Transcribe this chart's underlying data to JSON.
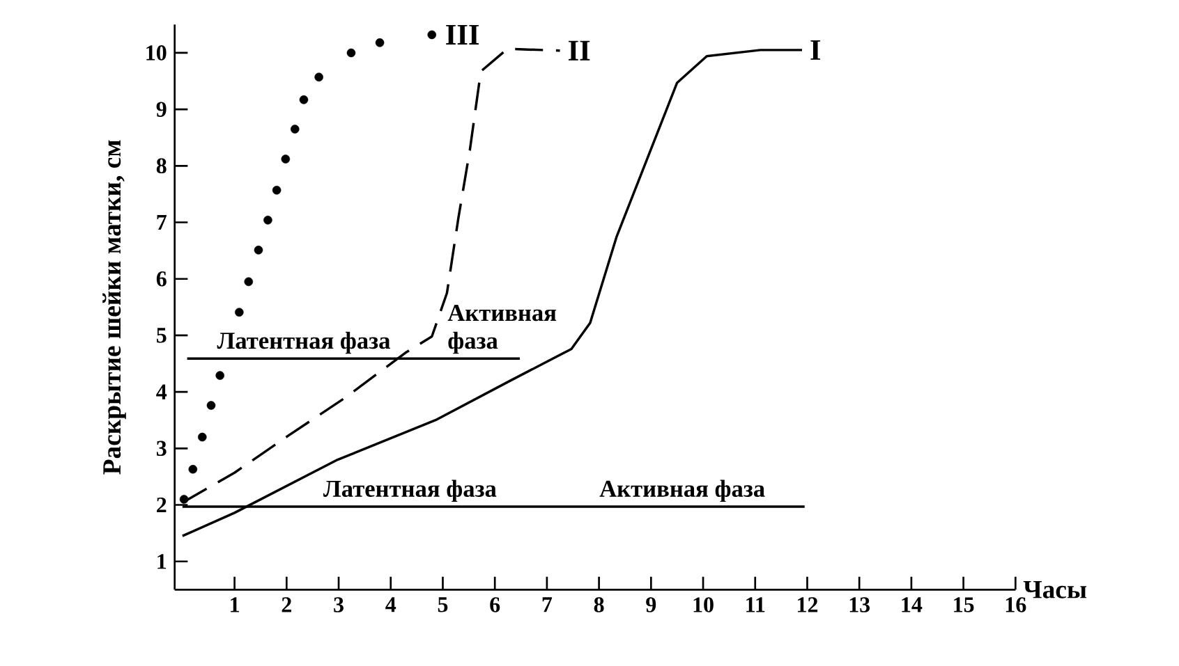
{
  "chart_data": {
    "type": "line",
    "xlabel": "Часы",
    "ylabel": "Раскрытие шейки матки, см",
    "xlim": [
      -0.15,
      16
    ],
    "ylim": [
      0.5,
      10.5
    ],
    "xticks": [
      1,
      2,
      3,
      4,
      5,
      6,
      7,
      8,
      9,
      10,
      11,
      12,
      13,
      14,
      15,
      16
    ],
    "yticks": [
      1,
      2,
      3,
      4,
      5,
      6,
      7,
      8,
      9,
      10
    ],
    "series": [
      {
        "name": "I",
        "type": "line",
        "line_style": "solid",
        "color": "#000000",
        "x": [
          0,
          1,
          2.98,
          4.86,
          6.3,
          7.47,
          7.83,
          8.34,
          9.5,
          10.07,
          11.1,
          11.9
        ],
        "values": [
          1.45,
          1.86,
          2.8,
          3.5,
          4.2,
          4.76,
          5.22,
          6.75,
          9.47,
          9.94,
          10.05,
          10.05
        ]
      },
      {
        "name": "II",
        "type": "line",
        "line_style": "dashed",
        "color": "#000000",
        "x": [
          0,
          1,
          2.04,
          3.13,
          4.28,
          4.79,
          5.08,
          5.3,
          5.52,
          5.73,
          6.24,
          7.25
        ],
        "values": [
          2.04,
          2.57,
          3.23,
          3.9,
          4.69,
          4.98,
          5.75,
          7.08,
          8.28,
          9.67,
          10.07,
          10.04
        ]
      },
      {
        "name": "III",
        "type": "scatter",
        "marker": "circle",
        "color": "#000000",
        "x": [
          0.03,
          0.2,
          0.38,
          0.55,
          0.72,
          1.09,
          1.27,
          1.46,
          1.64,
          1.81,
          1.98,
          2.16,
          2.33,
          2.62,
          3.24,
          3.79,
          4.79
        ],
        "values": [
          2.1,
          2.63,
          3.2,
          3.76,
          4.29,
          5.41,
          5.95,
          6.51,
          7.04,
          7.57,
          8.12,
          8.65,
          9.17,
          9.57,
          10.0,
          10.18,
          10.32
        ]
      },
      {
        "type": "line",
        "line_style": "solid",
        "color": "#000000",
        "x": [
          0.09,
          6.48
        ],
        "values": [
          4.59,
          4.59
        ]
      },
      {
        "type": "line",
        "line_style": "solid",
        "color": "#000000",
        "x": [
          0,
          11.95
        ],
        "values": [
          1.97,
          1.97
        ]
      }
    ],
    "annotations": [
      {
        "text": "Латентная фаза",
        "x": 2.33,
        "y": 4.59
      },
      {
        "text": "Активная фаза",
        "x": 6.34,
        "y": 4.59
      },
      {
        "text": "Латентная фаза",
        "x": 4.37,
        "y": 1.97
      },
      {
        "text": "Активная фаза",
        "x": 9.6,
        "y": 1.97
      }
    ]
  }
}
